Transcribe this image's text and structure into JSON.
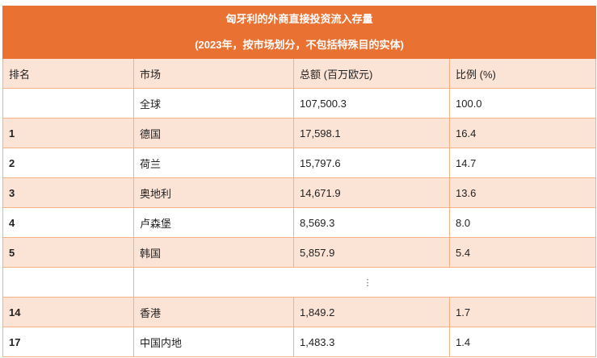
{
  "title": "匈牙利的外商直接投资流入存量",
  "subtitle": "(2023年，按市场划分，不包括特殊目的实体)",
  "columns": [
    "排名",
    "市场",
    "总额 (百万欧元)",
    "比例 (%)"
  ],
  "rows": [
    {
      "rank": "",
      "market": "全球",
      "total": "107,500.3",
      "share": "100.0"
    },
    {
      "rank": "1",
      "market": "德国",
      "total": "17,598.1",
      "share": "16.4"
    },
    {
      "rank": "2",
      "market": "荷兰",
      "total": "15,797.6",
      "share": "14.7"
    },
    {
      "rank": "3",
      "market": "奥地利",
      "total": "14,671.9",
      "share": "13.6"
    },
    {
      "rank": "4",
      "market": "卢森堡",
      "total": "8,569.3",
      "share": "8.0"
    },
    {
      "rank": "5",
      "market": "韩国",
      "total": "5,857.9",
      "share": "5.4"
    }
  ],
  "ellipsis": "⋮",
  "rows_after": [
    {
      "rank": "14",
      "market": "香港",
      "total": "1,849.2",
      "share": "1.7"
    },
    {
      "rank": "17",
      "market": "中国内地",
      "total": "1,483.3",
      "share": "1.4"
    }
  ],
  "colors": {
    "header": "#e97132",
    "stripe": "#fbe3d6",
    "border": "#f4b183"
  }
}
